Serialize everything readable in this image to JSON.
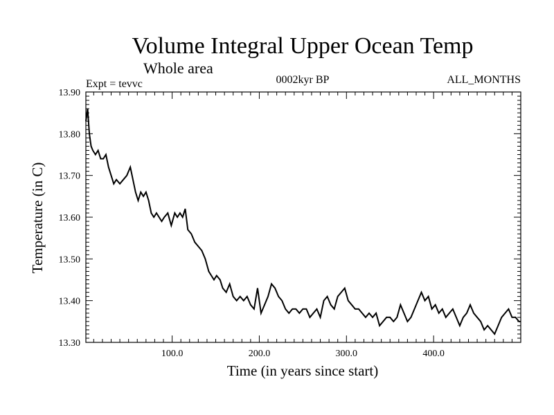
{
  "chart_data": {
    "type": "line",
    "title": "Volume Integral Upper Ocean Temp",
    "subtitle": "Whole area",
    "annotations": {
      "left": "Expt = tevvc",
      "center": "0002kyr BP",
      "right": "ALL_MONTHS"
    },
    "xlabel": "Time (in years since start)",
    "ylabel": "Temperature (in C)",
    "xlim": [
      1,
      500
    ],
    "ylim": [
      13.3,
      13.9
    ],
    "x_ticks": [
      "100.0",
      "200.0",
      "300.0",
      "400.0"
    ],
    "y_ticks": [
      "13.30",
      "13.40",
      "13.50",
      "13.60",
      "13.70",
      "13.80",
      "13.90"
    ],
    "grid": false,
    "series": [
      {
        "x": [
          1,
          3,
          5,
          7,
          9,
          12,
          15,
          18,
          21,
          24,
          27,
          30,
          33,
          36,
          40,
          44,
          48,
          52,
          55,
          58,
          61,
          64,
          67,
          70,
          73,
          76,
          79,
          82,
          85,
          88,
          91,
          95,
          99,
          103,
          106,
          109,
          112,
          115,
          118,
          122,
          126,
          130,
          134,
          138,
          142,
          145,
          148,
          151,
          155,
          158,
          162,
          166,
          170,
          174,
          178,
          182,
          186,
          190,
          194,
          198,
          202,
          206,
          210,
          214,
          218,
          222,
          226,
          230,
          234,
          238,
          242,
          246,
          250,
          254,
          258,
          262,
          266,
          270,
          274,
          278,
          282,
          286,
          290,
          294,
          298,
          302,
          306,
          310,
          314,
          318,
          322,
          326,
          330,
          334,
          338,
          342,
          346,
          350,
          354,
          358,
          362,
          366,
          370,
          374,
          378,
          382,
          386,
          390,
          394,
          398,
          402,
          406,
          410,
          414,
          418,
          422,
          426,
          430,
          434,
          438,
          442,
          446,
          450,
          454,
          458,
          462,
          466,
          470,
          474,
          478,
          482,
          486,
          490,
          494,
          498,
          500
        ],
        "y": [
          13.83,
          13.86,
          13.8,
          13.77,
          13.76,
          13.75,
          13.76,
          13.74,
          13.74,
          13.75,
          13.72,
          13.7,
          13.68,
          13.69,
          13.68,
          13.69,
          13.7,
          13.72,
          13.69,
          13.66,
          13.64,
          13.66,
          13.65,
          13.66,
          13.64,
          13.61,
          13.6,
          13.61,
          13.6,
          13.59,
          13.6,
          13.61,
          13.58,
          13.61,
          13.6,
          13.61,
          13.6,
          13.62,
          13.57,
          13.56,
          13.54,
          13.53,
          13.52,
          13.5,
          13.47,
          13.46,
          13.45,
          13.46,
          13.45,
          13.43,
          13.42,
          13.44,
          13.41,
          13.4,
          13.41,
          13.4,
          13.41,
          13.39,
          13.38,
          13.43,
          13.37,
          13.39,
          13.41,
          13.44,
          13.43,
          13.41,
          13.4,
          13.38,
          13.37,
          13.38,
          13.38,
          13.37,
          13.38,
          13.38,
          13.36,
          13.37,
          13.38,
          13.36,
          13.4,
          13.41,
          13.39,
          13.38,
          13.41,
          13.42,
          13.43,
          13.4,
          13.39,
          13.38,
          13.38,
          13.37,
          13.36,
          13.37,
          13.36,
          13.37,
          13.34,
          13.35,
          13.36,
          13.36,
          13.35,
          13.36,
          13.39,
          13.37,
          13.35,
          13.36,
          13.38,
          13.4,
          13.42,
          13.4,
          13.41,
          13.38,
          13.39,
          13.37,
          13.38,
          13.36,
          13.37,
          13.38,
          13.36,
          13.34,
          13.36,
          13.37,
          13.39,
          13.37,
          13.36,
          13.35,
          13.33,
          13.34,
          13.33,
          13.32,
          13.34,
          13.36,
          13.37,
          13.38,
          13.36,
          13.36,
          13.35,
          13.35
        ]
      }
    ]
  }
}
